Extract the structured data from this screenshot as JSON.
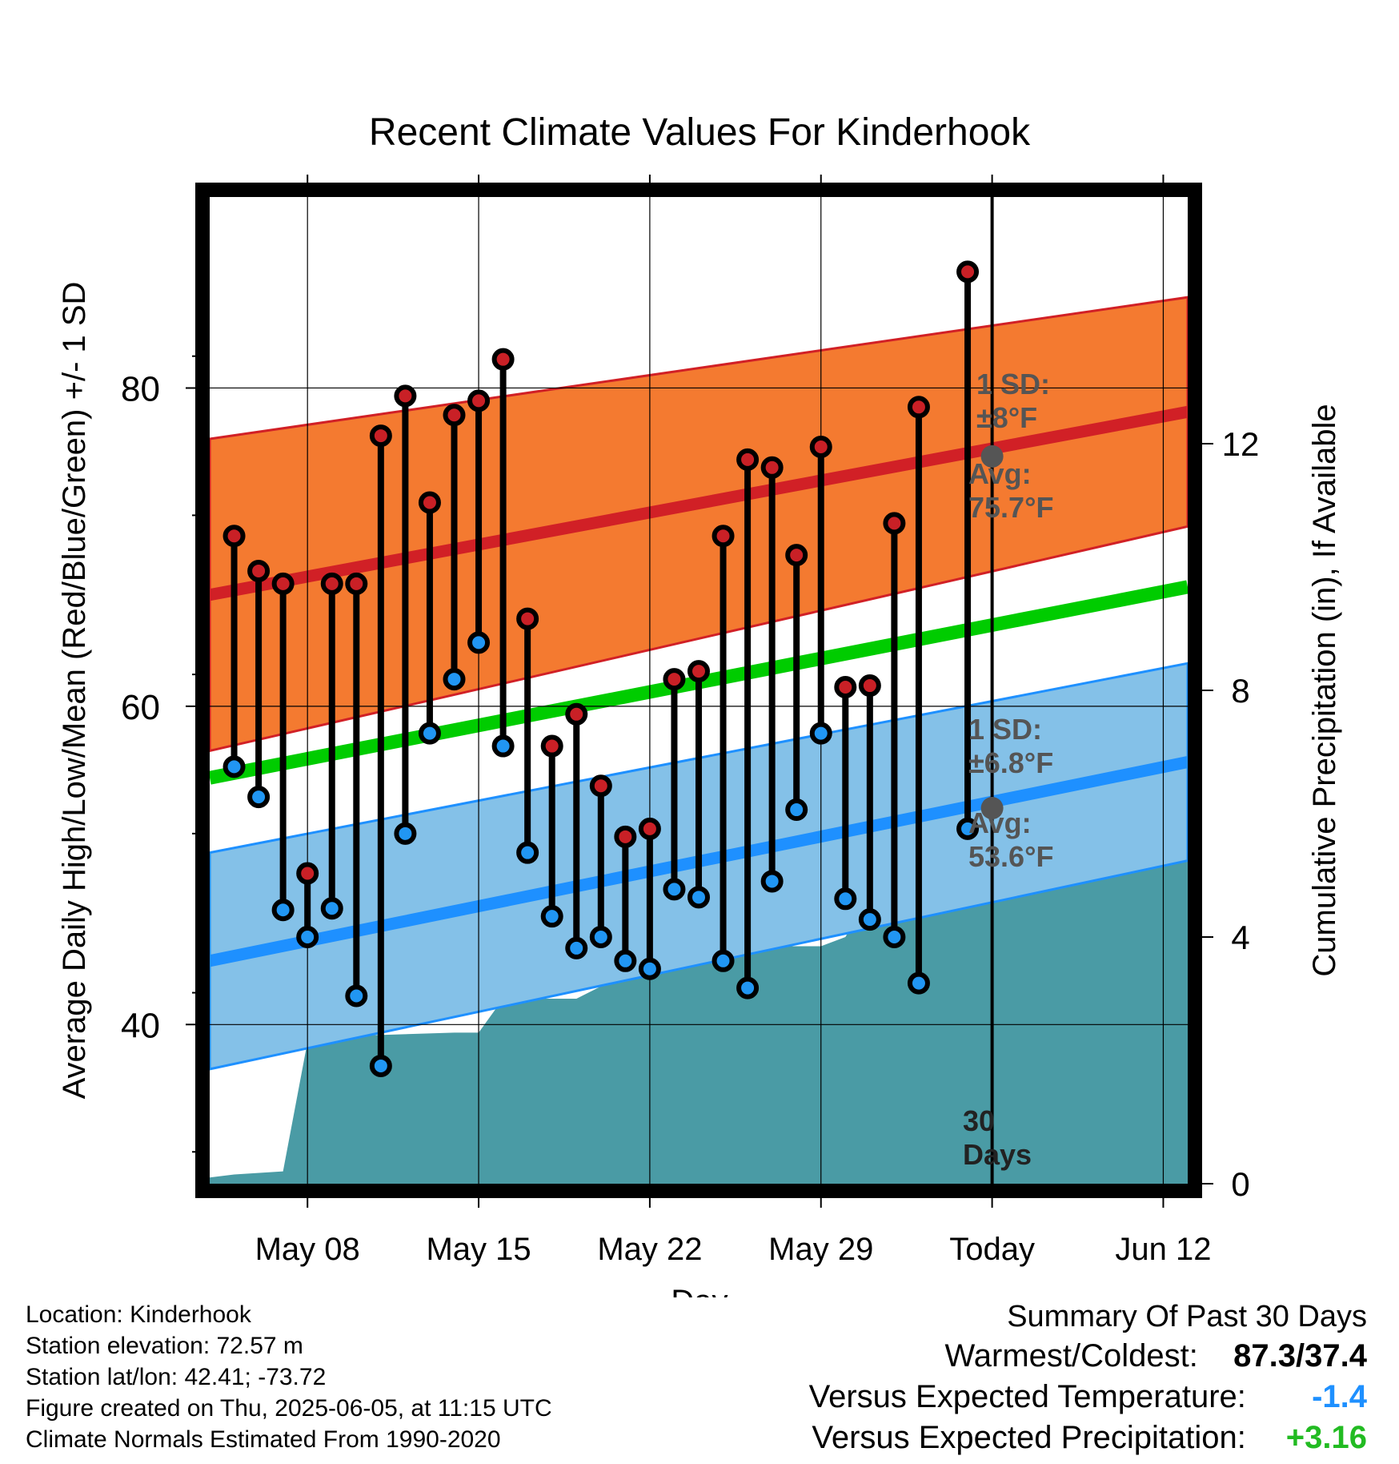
{
  "chart_data": {
    "type": "line",
    "title": "Recent Climate Values For Kinderhook",
    "xlabel": "Day",
    "ylabel": "Average Daily High/Low/Mean (Red/Blue/Green) +/- 1 SD",
    "y2label": "Cumulative Precipitation (in), If Available",
    "ylim": [
      30,
      92
    ],
    "y2lim": [
      0,
      16
    ],
    "yticks": [
      40,
      60,
      80
    ],
    "y2ticks": [
      0,
      4,
      8,
      12
    ],
    "x_start": "May 04",
    "x_end": "Jun 16",
    "xticks": [
      {
        "day": 8,
        "label": "May 08"
      },
      {
        "day": 15,
        "label": "May 15"
      },
      {
        "day": 22,
        "label": "May 22"
      },
      {
        "day": 29,
        "label": "May 29"
      },
      {
        "day": 36,
        "label": "Today"
      },
      {
        "day": 43,
        "label": "Jun 12"
      }
    ],
    "today_label": "30 Days",
    "grid": true,
    "normal_high": {
      "start": 67.0,
      "end": 78.5,
      "sd_start": 9.8,
      "sd_end": 7.2
    },
    "normal_low": {
      "start": 44.0,
      "end": 56.5,
      "sd_start": 6.8,
      "sd_end": 6.2
    },
    "normal_mean": {
      "start": 55.5,
      "end": 67.5
    },
    "annotations": {
      "high_sd": [
        "1 SD:",
        "±8°F"
      ],
      "high_avg": [
        "Avg:",
        "75.7°F"
      ],
      "high_avg_value": 75.7,
      "low_sd": [
        "1 SD:",
        "±6.8°F"
      ],
      "low_avg": [
        "Avg:",
        "53.6°F"
      ],
      "low_avg_value": 53.6
    },
    "days": [
      5,
      6,
      7,
      8,
      9,
      10,
      11,
      12,
      13,
      14,
      15,
      16,
      17,
      18,
      19,
      20,
      21,
      22,
      23,
      24,
      25,
      26,
      27,
      28,
      29,
      30,
      31,
      32,
      33,
      34,
      35
    ],
    "series": [
      {
        "name": "High",
        "values": [
          70.7,
          68.5,
          67.7,
          49.5,
          67.7,
          67.7,
          77.0,
          79.5,
          72.8,
          78.3,
          79.2,
          81.8,
          65.5,
          57.5,
          59.5,
          55.0,
          51.8,
          52.3,
          61.7,
          62.2,
          70.7,
          75.5,
          75.0,
          69.5,
          76.3,
          61.2,
          61.3,
          71.5,
          78.8,
          87.3
        ],
        "days": [
          5,
          6,
          7,
          8,
          9,
          10,
          11,
          12,
          13,
          14,
          15,
          16,
          17,
          18,
          19,
          20,
          21,
          22,
          23,
          24,
          25,
          26,
          27,
          28,
          29,
          30,
          31,
          32,
          33,
          35
        ]
      },
      {
        "name": "Low",
        "values": [
          56.2,
          54.3,
          47.2,
          45.5,
          47.3,
          41.8,
          37.4,
          52.0,
          58.3,
          61.7,
          64.0,
          57.5,
          50.8,
          46.8,
          44.8,
          45.5,
          44.0,
          43.5,
          48.5,
          48.0,
          44.0,
          42.3,
          49.0,
          53.5,
          58.3,
          47.9,
          46.6,
          45.5,
          42.6,
          52.3
        ],
        "days": [
          5,
          6,
          7,
          8,
          9,
          10,
          11,
          12,
          13,
          14,
          15,
          16,
          17,
          18,
          19,
          20,
          21,
          22,
          23,
          24,
          25,
          26,
          27,
          28,
          29,
          30,
          31,
          32,
          33,
          35
        ]
      }
    ],
    "precip": {
      "days": [
        4,
        5,
        7,
        8,
        9,
        10,
        14,
        15,
        16,
        19,
        20,
        21,
        22,
        23,
        29,
        30,
        34,
        44
      ],
      "values": [
        0.1,
        0.15,
        0.2,
        2.3,
        2.4,
        2.4,
        2.45,
        2.45,
        3.0,
        3.0,
        3.2,
        3.5,
        3.75,
        3.85,
        3.85,
        4.0,
        6.7,
        6.7
      ]
    },
    "colors": {
      "high_band": "#f47a30",
      "high_line": "#d12026",
      "low_band": "#84c1e8",
      "low_line": "#1e90ff",
      "mean_line": "#00cc00",
      "precip": "#4a9ba5",
      "high_dot": "#c92026",
      "low_dot": "#2196f3",
      "annotation": "#555555"
    }
  },
  "footer": {
    "location": "Location: Kinderhook",
    "elevation": "Station elevation: 72.57 m",
    "latlon": "Station lat/lon: 42.41; -73.72",
    "created": "Figure created on Thu, 2025-06-05, at 11:15 UTC",
    "normals": "Climate Normals Estimated From 1990-2020"
  },
  "summary": {
    "heading": "Summary Of Past 30 Days",
    "warm_cold_label": "Warmest/Coldest:",
    "warm_cold_value": "87.3/37.4",
    "temp_label": "Versus Expected Temperature:",
    "temp_value": "-1.4",
    "temp_color": "#1e90ff",
    "precip_label": "Versus Expected Precipitation:",
    "precip_value": "+3.16",
    "precip_color": "#22bb22"
  }
}
